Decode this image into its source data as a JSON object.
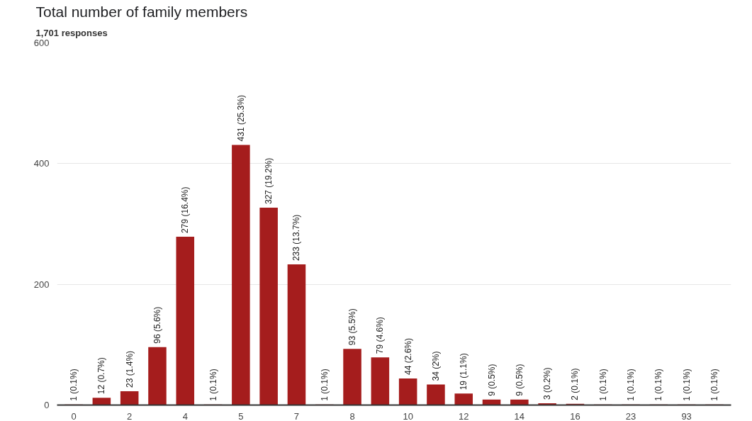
{
  "chart_data": {
    "type": "bar",
    "title": "Total number of family members",
    "subtitle": "1,701 responses",
    "categories": [
      "0",
      null,
      "2",
      null,
      "4",
      null,
      "5",
      null,
      "7",
      null,
      "8",
      null,
      "10",
      null,
      "12",
      null,
      "14",
      null,
      "16",
      null,
      "23",
      null,
      "93",
      null
    ],
    "values": [
      1,
      12,
      23,
      96,
      279,
      1,
      431,
      327,
      233,
      1,
      93,
      79,
      44,
      34,
      19,
      9,
      9,
      3,
      2,
      1,
      1,
      1,
      1,
      1
    ],
    "value_labels": [
      "1 (0.1%)",
      "12 (0.7%)",
      "23 (1.4%)",
      "96 (5.6%)",
      "279 (16.4%)",
      "1 (0.1%)",
      "431 (25.3%)",
      "327 (19.2%)",
      "233 (13.7%)",
      "1 (0.1%)",
      "93 (5.5%)",
      "79 (4.6%)",
      "44 (2.6%)",
      "34 (2%)",
      "19 (1.1%)",
      "9 (0.5%)",
      "9 (0.5%)",
      "3 (0.2%)",
      "2 (0.1%)",
      "1 (0.1%)",
      "1 (0.1%)",
      "1 (0.1%)",
      "1 (0.1%)",
      "1 (0.1%)"
    ],
    "color": "#a51d1d",
    "ylim": [
      0,
      600
    ],
    "yticks": [
      0,
      200,
      400,
      600
    ],
    "grid": "y"
  }
}
